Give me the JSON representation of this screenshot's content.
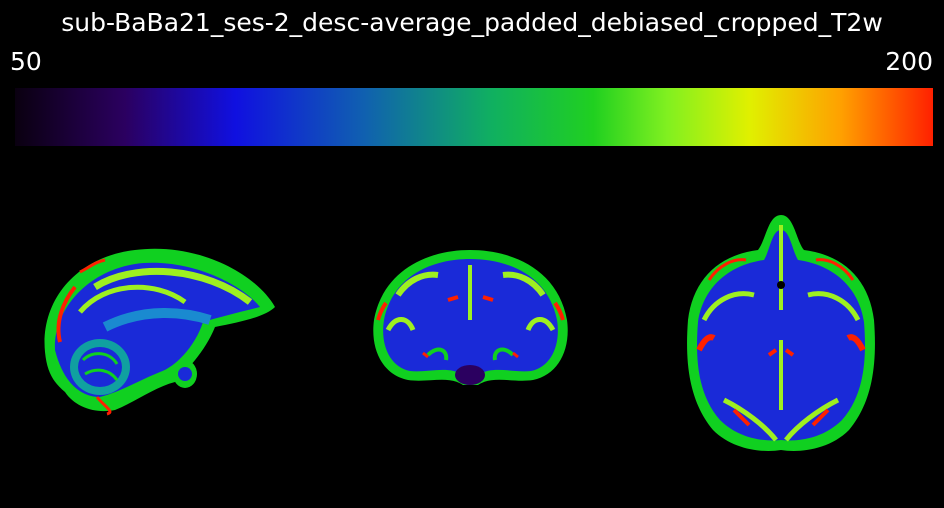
{
  "title": "sub-BaBa21_ses-2_desc-average_padded_debiased_cropped_T2w",
  "colorbar": {
    "min_label": "50",
    "max_label": "200",
    "colormap_stops": [
      "#0a0010",
      "#2b0060",
      "#1010e0",
      "#1060c0",
      "#10b060",
      "#20d020",
      "#80f020",
      "#e0f000",
      "#ffa000",
      "#ff2000"
    ]
  },
  "views": [
    {
      "name": "sagittal"
    },
    {
      "name": "coronal"
    },
    {
      "name": "axial"
    }
  ]
}
